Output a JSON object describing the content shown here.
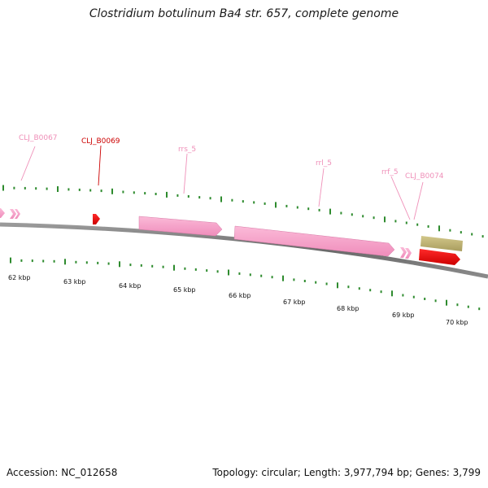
{
  "title": "Clostridium botulinum Ba4 str. 657, complete genome",
  "footer": {
    "accession": "Accession: NC_012658",
    "summary": "Topology: circular; Length: 3,977,794 bp; Genes: 3,799"
  },
  "colors": {
    "background": "#ffffff",
    "backbone": "#707070",
    "ticks": "#2e8b2e",
    "rRNA": "#f59ec8",
    "cds_red": "#e60000",
    "cds_tan": "#c2b77a",
    "label_pink": "#ef8fb8",
    "label_red": "#cc0000"
  },
  "scale": {
    "unit": "kbp",
    "labels": [
      {
        "kbp": 62,
        "text": "62 kbp"
      },
      {
        "kbp": 63,
        "text": "63 kbp"
      },
      {
        "kbp": 64,
        "text": "64 kbp"
      },
      {
        "kbp": 65,
        "text": "65 kbp"
      },
      {
        "kbp": 66,
        "text": "66 kbp"
      },
      {
        "kbp": 67,
        "text": "67 kbp"
      },
      {
        "kbp": 68,
        "text": "68 kbp"
      },
      {
        "kbp": 69,
        "text": "69 kbp"
      },
      {
        "kbp": 70,
        "text": "70 kbp"
      }
    ]
  },
  "features": [
    {
      "label": "CLJ_B0067",
      "type": "rRNA",
      "color_key": "label_pink"
    },
    {
      "label": "CLJ_B0069",
      "type": "CDS",
      "color_key": "label_red"
    },
    {
      "label": "rrs_5",
      "type": "rRNA",
      "color_key": "label_pink"
    },
    {
      "label": "rrl_5",
      "type": "rRNA",
      "color_key": "label_pink"
    },
    {
      "label": "rrf_5",
      "type": "rRNA",
      "color_key": "label_pink"
    },
    {
      "label": "CLJ_B0074",
      "type": "rRNA",
      "color_key": "label_pink"
    }
  ]
}
